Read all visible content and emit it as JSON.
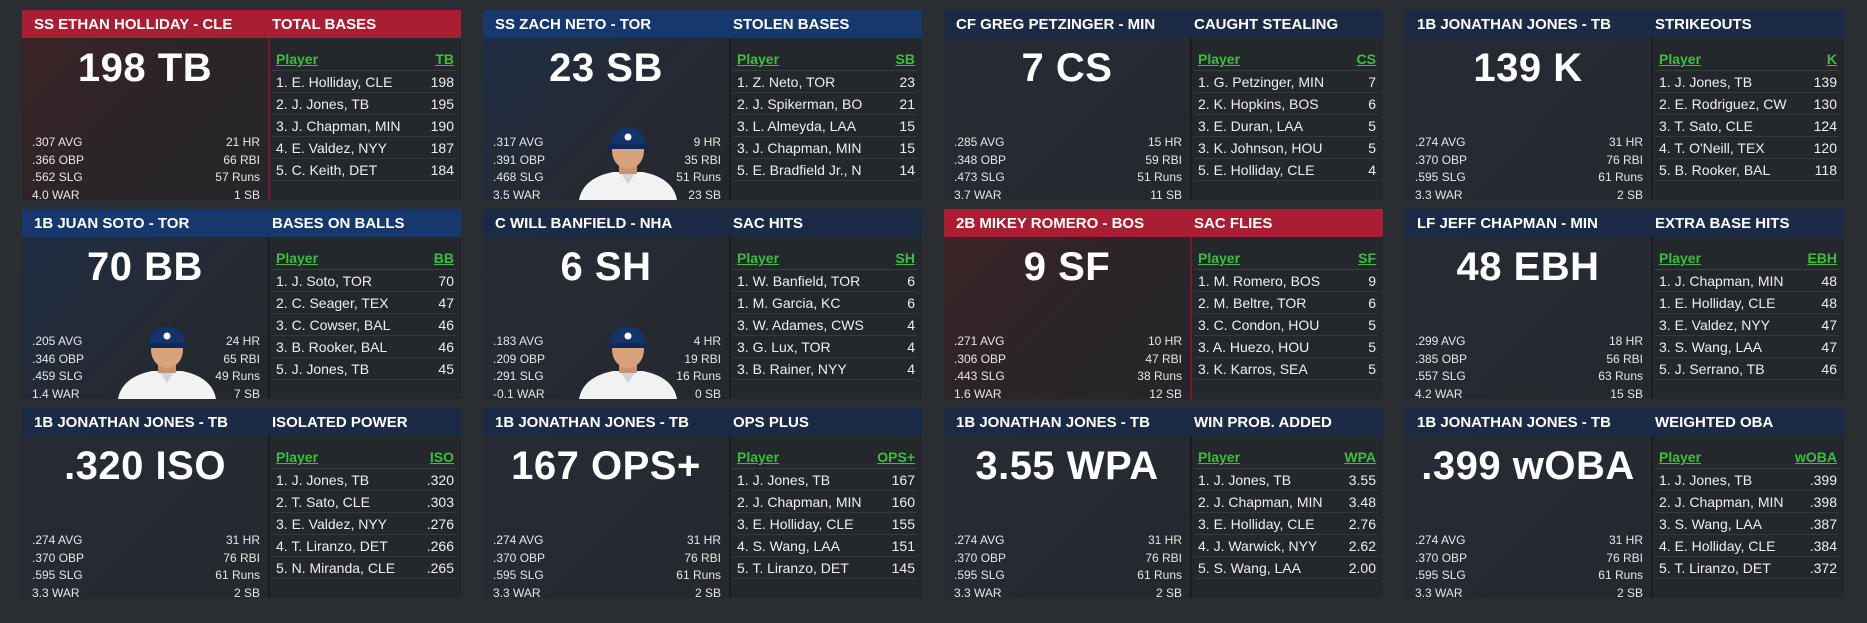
{
  "cards": [
    {
      "player": "SS ETHAN HOLLIDAY - CLE",
      "category": "TOTAL BASES",
      "theme": "red",
      "headline": "198 TB",
      "stat_col": "TB",
      "player_col": "Player",
      "photo": false,
      "stats": [
        [
          ".307 AVG",
          "21 HR"
        ],
        [
          ".366 OBP",
          "66 RBI"
        ],
        [
          ".562 SLG",
          "57 Runs"
        ],
        [
          "4.0 WAR",
          "1 SB"
        ]
      ],
      "leaders": [
        [
          "1. E. Holliday, CLE",
          "198"
        ],
        [
          "2. J. Jones, TB",
          "195"
        ],
        [
          "3. J. Chapman, MIN",
          "190"
        ],
        [
          "4. E. Valdez, NYY",
          "187"
        ],
        [
          "5. C. Keith, DET",
          "184"
        ]
      ]
    },
    {
      "player": "SS ZACH NETO - TOR",
      "category": "STOLEN BASES",
      "theme": "blue",
      "headline": "23 SB",
      "stat_col": "SB",
      "player_col": "Player",
      "photo": true,
      "stats": [
        [
          ".317 AVG",
          "9 HR"
        ],
        [
          ".391 OBP",
          "35 RBI"
        ],
        [
          ".468 SLG",
          "51 Runs"
        ],
        [
          "3.5 WAR",
          "23 SB"
        ]
      ],
      "leaders": [
        [
          "1. Z. Neto, TOR",
          "23"
        ],
        [
          "2. J. Spikerman, BO",
          "21"
        ],
        [
          "3. L. Almeyda, LAA",
          "15"
        ],
        [
          "3. J. Chapman, MIN",
          "15"
        ],
        [
          "5. E. Bradfield Jr., N",
          "14"
        ]
      ]
    },
    {
      "player": "CF GREG PETZINGER - MIN",
      "category": "CAUGHT STEALING",
      "theme": "navy",
      "headline": "7 CS",
      "stat_col": "CS",
      "player_col": "Player",
      "photo": false,
      "stats": [
        [
          ".285 AVG",
          "15 HR"
        ],
        [
          ".348 OBP",
          "59 RBI"
        ],
        [
          ".473 SLG",
          "51 Runs"
        ],
        [
          "3.7 WAR",
          "11 SB"
        ]
      ],
      "leaders": [
        [
          "1. G. Petzinger, MIN",
          "7"
        ],
        [
          "2. K. Hopkins, BOS",
          "6"
        ],
        [
          "3. E. Duran, LAA",
          "5"
        ],
        [
          "3. K. Johnson, HOU",
          "5"
        ],
        [
          "5. E. Holliday, CLE",
          "4"
        ]
      ]
    },
    {
      "player": "1B JONATHAN JONES - TB",
      "category": "STRIKEOUTS",
      "theme": "navy",
      "headline": "139 K",
      "stat_col": "K",
      "player_col": "Player",
      "photo": false,
      "stats": [
        [
          ".274 AVG",
          "31 HR"
        ],
        [
          ".370 OBP",
          "76 RBI"
        ],
        [
          ".595 SLG",
          "61 Runs"
        ],
        [
          "3.3 WAR",
          "2 SB"
        ]
      ],
      "leaders": [
        [
          "1. J. Jones, TB",
          "139"
        ],
        [
          "2. E. Rodriguez, CW",
          "130"
        ],
        [
          "3. T. Sato, CLE",
          "124"
        ],
        [
          "4. T. O'Neill, TEX",
          "120"
        ],
        [
          "5. B. Rooker, BAL",
          "118"
        ]
      ]
    },
    {
      "player": "1B JUAN SOTO - TOR",
      "category": "BASES ON BALLS",
      "theme": "blue",
      "headline": "70 BB",
      "stat_col": "BB",
      "player_col": "Player",
      "photo": true,
      "stats": [
        [
          ".205 AVG",
          "24 HR"
        ],
        [
          ".346 OBP",
          "65 RBI"
        ],
        [
          ".459 SLG",
          "49 Runs"
        ],
        [
          "1.4 WAR",
          "7 SB"
        ]
      ],
      "leaders": [
        [
          "1. J. Soto, TOR",
          "70"
        ],
        [
          "2. C. Seager, TEX",
          "47"
        ],
        [
          "3. C. Cowser, BAL",
          "46"
        ],
        [
          "3. B. Rooker, BAL",
          "46"
        ],
        [
          "5. J. Jones, TB",
          "45"
        ]
      ]
    },
    {
      "player": "C WILL BANFIELD - NHA",
      "category": "SAC HITS",
      "theme": "navy",
      "headline": "6 SH",
      "stat_col": "SH",
      "player_col": "Player",
      "photo": true,
      "stats": [
        [
          ".183 AVG",
          "4 HR"
        ],
        [
          ".209 OBP",
          "19 RBI"
        ],
        [
          ".291 SLG",
          "16 Runs"
        ],
        [
          "-0.1 WAR",
          "0 SB"
        ]
      ],
      "leaders": [
        [
          "1. W. Banfield, TOR",
          "6"
        ],
        [
          "1. M. Garcia, KC",
          "6"
        ],
        [
          "3. W. Adames, CWS",
          "4"
        ],
        [
          "3. G. Lux, TOR",
          "4"
        ],
        [
          "3. B. Rainer, NYY",
          "4"
        ]
      ]
    },
    {
      "player": "2B MIKEY ROMERO - BOS",
      "category": "SAC FLIES",
      "theme": "red",
      "headline": "9 SF",
      "stat_col": "SF",
      "player_col": "Player",
      "photo": false,
      "stats": [
        [
          ".271 AVG",
          "10 HR"
        ],
        [
          ".306 OBP",
          "47 RBI"
        ],
        [
          ".443 SLG",
          "38 Runs"
        ],
        [
          "1.6 WAR",
          "12 SB"
        ]
      ],
      "leaders": [
        [
          "1. M. Romero, BOS",
          "9"
        ],
        [
          "2. M. Beltre, TOR",
          "6"
        ],
        [
          "3. C. Condon, HOU",
          "5"
        ],
        [
          "3. A. Huezo, HOU",
          "5"
        ],
        [
          "3. K. Karros, SEA",
          "5"
        ]
      ]
    },
    {
      "player": "LF JEFF CHAPMAN - MIN",
      "category": "EXTRA BASE HITS",
      "theme": "navy",
      "headline": "48 EBH",
      "stat_col": "EBH",
      "player_col": "Player",
      "photo": false,
      "stats": [
        [
          ".299 AVG",
          "18 HR"
        ],
        [
          ".385 OBP",
          "56 RBI"
        ],
        [
          ".557 SLG",
          "63 Runs"
        ],
        [
          "4.2 WAR",
          "15 SB"
        ]
      ],
      "leaders": [
        [
          "1. J. Chapman, MIN",
          "48"
        ],
        [
          "1. E. Holliday, CLE",
          "48"
        ],
        [
          "3. E. Valdez, NYY",
          "47"
        ],
        [
          "3. S. Wang, LAA",
          "47"
        ],
        [
          "5. J. Serrano, TB",
          "46"
        ]
      ]
    },
    {
      "player": "1B JONATHAN JONES - TB",
      "category": "ISOLATED POWER",
      "theme": "navy",
      "headline": ".320 ISO",
      "stat_col": "ISO",
      "player_col": "Player",
      "photo": false,
      "stats": [
        [
          ".274 AVG",
          "31 HR"
        ],
        [
          ".370 OBP",
          "76 RBI"
        ],
        [
          ".595 SLG",
          "61 Runs"
        ],
        [
          "3.3 WAR",
          "2 SB"
        ]
      ],
      "leaders": [
        [
          "1. J. Jones, TB",
          ".320"
        ],
        [
          "2. T. Sato, CLE",
          ".303"
        ],
        [
          "3. E. Valdez, NYY",
          ".276"
        ],
        [
          "4. T. Liranzo, DET",
          ".266"
        ],
        [
          "5. N. Miranda, CLE",
          ".265"
        ]
      ]
    },
    {
      "player": "1B JONATHAN JONES - TB",
      "category": "OPS PLUS",
      "theme": "navy",
      "headline": "167 OPS+",
      "stat_col": "OPS+",
      "player_col": "Player",
      "photo": false,
      "stats": [
        [
          ".274 AVG",
          "31 HR"
        ],
        [
          ".370 OBP",
          "76 RBI"
        ],
        [
          ".595 SLG",
          "61 Runs"
        ],
        [
          "3.3 WAR",
          "2 SB"
        ]
      ],
      "leaders": [
        [
          "1. J. Jones, TB",
          "167"
        ],
        [
          "2. J. Chapman, MIN",
          "160"
        ],
        [
          "3. E. Holliday, CLE",
          "155"
        ],
        [
          "4. S. Wang, LAA",
          "151"
        ],
        [
          "5. T. Liranzo, DET",
          "145"
        ]
      ]
    },
    {
      "player": "1B JONATHAN JONES - TB",
      "category": "WIN PROB. ADDED",
      "theme": "navy",
      "headline": "3.55 WPA",
      "stat_col": "WPA",
      "player_col": "Player",
      "photo": false,
      "stats": [
        [
          ".274 AVG",
          "31 HR"
        ],
        [
          ".370 OBP",
          "76 RBI"
        ],
        [
          ".595 SLG",
          "61 Runs"
        ],
        [
          "3.3 WAR",
          "2 SB"
        ]
      ],
      "leaders": [
        [
          "1. J. Jones, TB",
          "3.55"
        ],
        [
          "2. J. Chapman, MIN",
          "3.48"
        ],
        [
          "3. E. Holliday, CLE",
          "2.76"
        ],
        [
          "4. J. Warwick, NYY",
          "2.62"
        ],
        [
          "5. S. Wang, LAA",
          "2.00"
        ]
      ]
    },
    {
      "player": "1B JONATHAN JONES - TB",
      "category": "WEIGHTED OBA",
      "theme": "navy",
      "headline": ".399 wOBA",
      "stat_col": "wOBA",
      "player_col": "Player",
      "photo": false,
      "stats": [
        [
          ".274 AVG",
          "31 HR"
        ],
        [
          ".370 OBP",
          "76 RBI"
        ],
        [
          ".595 SLG",
          "61 Runs"
        ],
        [
          "3.3 WAR",
          "2 SB"
        ]
      ],
      "leaders": [
        [
          "1. J. Jones, TB",
          ".399"
        ],
        [
          "2. J. Chapman, MIN",
          ".398"
        ],
        [
          "3. S. Wang, LAA",
          ".387"
        ],
        [
          "4. E. Holliday, CLE",
          ".384"
        ],
        [
          "5. T. Liranzo, DET",
          ".372"
        ]
      ]
    }
  ]
}
